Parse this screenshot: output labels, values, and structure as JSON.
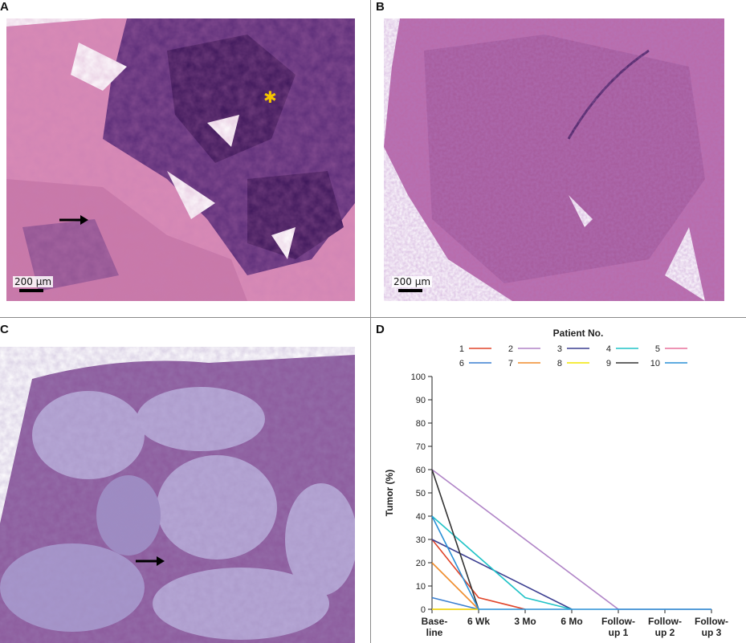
{
  "panels": {
    "A": {
      "letter": "A",
      "scale": "200 μm",
      "marker": "✱"
    },
    "B": {
      "letter": "B",
      "scale": "200 μm"
    },
    "C": {
      "letter": "C"
    },
    "D": {
      "letter": "D"
    }
  },
  "colors": {
    "he_pink": "#d98bb6",
    "he_purple": "#5a2d78",
    "he_dark": "#3b1659",
    "he_lavender": "#b6a8d6",
    "marker_yellow": "#f5c400"
  },
  "chart_data": {
    "type": "line",
    "legend_title": "Patient No.",
    "ylabel": "Tumor (%)",
    "xlabel": "",
    "ylim": [
      0,
      100
    ],
    "yticks": [
      0,
      10,
      20,
      30,
      40,
      50,
      60,
      70,
      80,
      90,
      100
    ],
    "categories": [
      "Base-\nline",
      "6 Wk",
      "3 Mo",
      "6 Mo",
      "Follow-\nup 1",
      "Follow-\nup 2",
      "Follow-\nup 3"
    ],
    "series": [
      {
        "name": "1",
        "color": "#e0452a",
        "x": [
          0,
          1,
          2
        ],
        "values": [
          30,
          5,
          0
        ]
      },
      {
        "name": "2",
        "color": "#b084c7",
        "x": [
          0,
          4,
          5,
          6
        ],
        "values": [
          60,
          0,
          0,
          0
        ]
      },
      {
        "name": "3",
        "color": "#3c3f91",
        "x": [
          0,
          3
        ],
        "values": [
          30,
          0
        ]
      },
      {
        "name": "4",
        "color": "#21c3c7",
        "x": [
          0,
          2,
          3
        ],
        "values": [
          40,
          5,
          0
        ]
      },
      {
        "name": "5",
        "color": "#e8709c",
        "x": [
          0,
          1
        ],
        "values": [
          0,
          0
        ]
      },
      {
        "name": "6",
        "color": "#3a7fd0",
        "x": [
          0,
          1
        ],
        "values": [
          5,
          0
        ]
      },
      {
        "name": "7",
        "color": "#f08c2c",
        "x": [
          0,
          1
        ],
        "values": [
          20,
          0
        ]
      },
      {
        "name": "8",
        "color": "#f2e600",
        "x": [
          0,
          1
        ],
        "values": [
          0,
          0
        ]
      },
      {
        "name": "9",
        "color": "#333333",
        "x": [
          0,
          1
        ],
        "values": [
          60,
          0
        ]
      },
      {
        "name": "10",
        "color": "#2a8fd6",
        "x": [
          0,
          1,
          6
        ],
        "values": [
          40,
          0,
          0
        ]
      }
    ]
  }
}
